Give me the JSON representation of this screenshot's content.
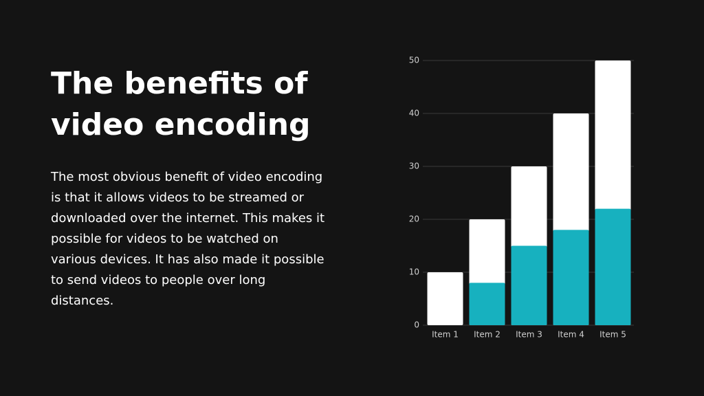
{
  "slide": {
    "title": "The benefits of video encoding",
    "body": "The most obvious benefit of video encoding is that it allows videos to be streamed or downloaded over the internet. This makes it possible for videos to be watched on various devices. It has also made it possible to send videos to people over long distances."
  },
  "chart_data": {
    "type": "bar",
    "categories": [
      "Item 1",
      "Item 2",
      "Item 3",
      "Item 4",
      "Item 5"
    ],
    "series": [
      {
        "color": "#ffffff",
        "values": [
          10,
          20,
          30,
          40,
          50
        ]
      },
      {
        "color": "#17b1bf",
        "values": [
          0,
          8,
          15,
          18,
          22
        ]
      }
    ],
    "ylim": [
      0,
      50
    ],
    "yticks": [
      0,
      10,
      20,
      30,
      40,
      50
    ],
    "grid": true
  }
}
